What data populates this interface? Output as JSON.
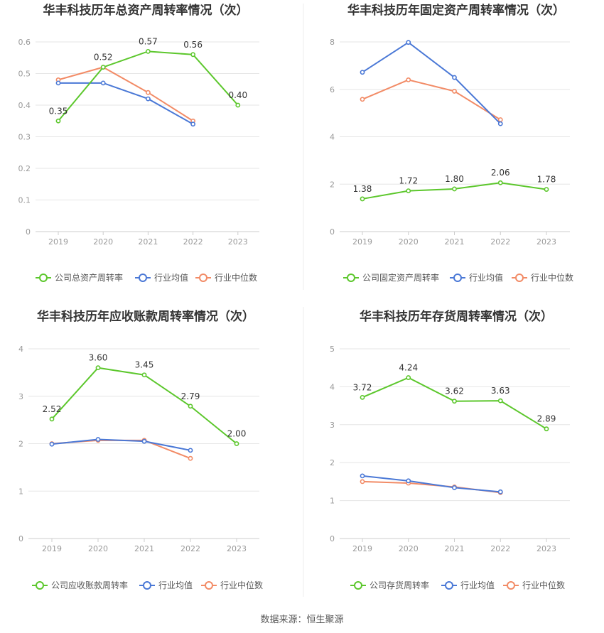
{
  "colors": {
    "company": "#5cc72c",
    "avg": "#4a78d6",
    "median": "#f28b66",
    "grid": "#e6e6e6",
    "axis": "#cccccc"
  },
  "legend": {
    "avg": "行业均值",
    "median": "行业中位数"
  },
  "source": "数据来源：恒生聚源",
  "chart_data": [
    {
      "type": "line",
      "title": "华丰科技历年总资产周转率情况（次）",
      "categories": [
        "2019",
        "2020",
        "2021",
        "2022",
        "2023"
      ],
      "ylim": [
        0,
        0.6
      ],
      "yticks": [
        "0",
        "0.1",
        "0.2",
        "0.3",
        "0.4",
        "0.5",
        "0.6"
      ],
      "series": [
        {
          "key": "company",
          "name": "公司总资产周转率",
          "values": [
            0.35,
            0.52,
            0.57,
            0.56,
            0.4
          ],
          "labels": [
            "0.35",
            "0.52",
            "0.57",
            "0.56",
            "0.40"
          ]
        },
        {
          "key": "avg",
          "name": "行业均值",
          "values": [
            0.47,
            0.47,
            0.42,
            0.34,
            null
          ]
        },
        {
          "key": "median",
          "name": "行业中位数",
          "values": [
            0.48,
            0.52,
            0.44,
            0.35,
            null
          ]
        }
      ]
    },
    {
      "type": "line",
      "title": "华丰科技历年固定资产周转率情况（次）",
      "categories": [
        "2019",
        "2020",
        "2021",
        "2022",
        "2023"
      ],
      "ylim": [
        0,
        8
      ],
      "yticks": [
        "0",
        "2",
        "4",
        "6",
        "8"
      ],
      "series": [
        {
          "key": "company",
          "name": "公司固定资产周转率",
          "values": [
            1.38,
            1.72,
            1.8,
            2.06,
            1.78
          ],
          "labels": [
            "1.38",
            "1.72",
            "1.80",
            "2.06",
            "1.78"
          ]
        },
        {
          "key": "avg",
          "name": "行业均值",
          "values": [
            6.72,
            7.98,
            6.5,
            4.55,
            null
          ]
        },
        {
          "key": "median",
          "name": "行业中位数",
          "values": [
            5.58,
            6.4,
            5.92,
            4.72,
            null
          ]
        }
      ]
    },
    {
      "type": "line",
      "title": "华丰科技历年应收账款周转率情况（次）",
      "categories": [
        "2019",
        "2020",
        "2021",
        "2022",
        "2023"
      ],
      "ylim": [
        0,
        4
      ],
      "yticks": [
        "0",
        "1",
        "2",
        "3",
        "4"
      ],
      "series": [
        {
          "key": "company",
          "name": "公司应收账款周转率",
          "values": [
            2.52,
            3.6,
            3.45,
            2.79,
            2.0
          ],
          "labels": [
            "2.52",
            "3.60",
            "3.45",
            "2.79",
            "2.00"
          ]
        },
        {
          "key": "avg",
          "name": "行业均值",
          "values": [
            1.99,
            2.09,
            2.05,
            1.86,
            null
          ]
        },
        {
          "key": "median",
          "name": "行业中位数",
          "values": [
            2.0,
            2.07,
            2.07,
            1.69,
            null
          ]
        }
      ]
    },
    {
      "type": "line",
      "title": "华丰科技历年存货周转率情况（次）",
      "categories": [
        "2019",
        "2020",
        "2021",
        "2022",
        "2023"
      ],
      "ylim": [
        0,
        5
      ],
      "yticks": [
        "0",
        "1",
        "2",
        "3",
        "4",
        "5"
      ],
      "series": [
        {
          "key": "company",
          "name": "公司存货周转率",
          "values": [
            3.72,
            4.24,
            3.62,
            3.63,
            2.89
          ],
          "labels": [
            "3.72",
            "4.24",
            "3.62",
            "3.63",
            "2.89"
          ]
        },
        {
          "key": "avg",
          "name": "行业均值",
          "values": [
            1.65,
            1.52,
            1.34,
            1.23,
            null
          ]
        },
        {
          "key": "median",
          "name": "行业中位数",
          "values": [
            1.5,
            1.46,
            1.36,
            1.21,
            null
          ]
        }
      ]
    }
  ]
}
